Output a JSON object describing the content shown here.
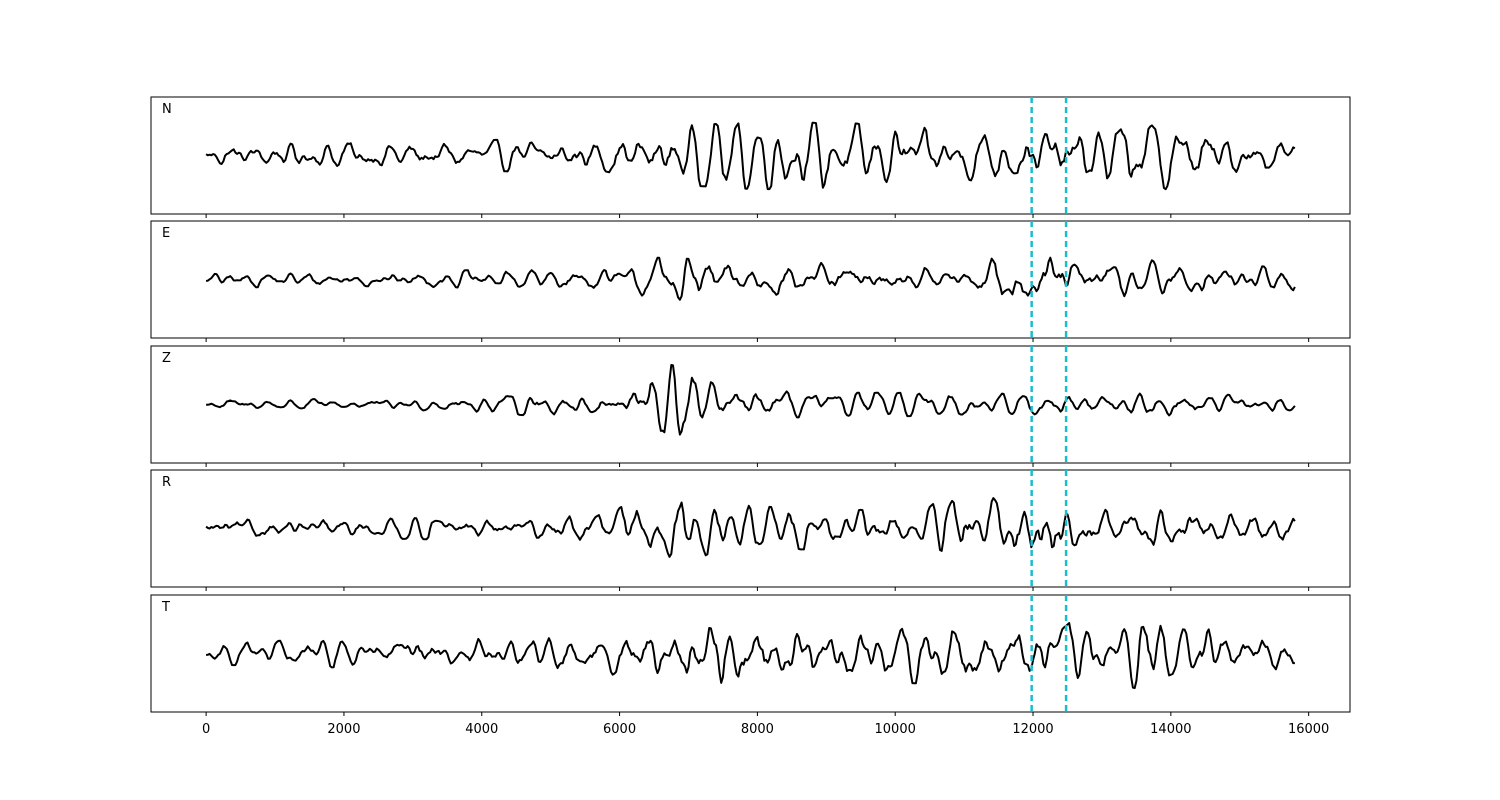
{
  "chart_data": {
    "type": "line",
    "title": "",
    "xlabel": "",
    "ylabel": "",
    "xlim": [
      -800,
      16600
    ],
    "x_ticks": [
      0,
      2000,
      4000,
      6000,
      8000,
      10000,
      12000,
      14000,
      16000
    ],
    "x_tick_labels": [
      "0",
      "2000",
      "4000",
      "6000",
      "8000",
      "10000",
      "12000",
      "14000",
      "16000"
    ],
    "grid": false,
    "y_ticks_visible": false,
    "trace_color": "#000000",
    "marker_color": "#17becf",
    "markers": {
      "style": "dashed",
      "x": [
        11980,
        12480
      ]
    },
    "panels": [
      {
        "label": "N",
        "x_start": 0,
        "x_end": 15800,
        "amplitude_envelope": [
          {
            "x": 0,
            "amp": 0.22
          },
          {
            "x": 2000,
            "amp": 0.28
          },
          {
            "x": 4000,
            "amp": 0.28
          },
          {
            "x": 6000,
            "amp": 0.34
          },
          {
            "x": 7000,
            "amp": 0.55
          },
          {
            "x": 8000,
            "amp": 0.62
          },
          {
            "x": 9700,
            "amp": 0.58
          },
          {
            "x": 11000,
            "amp": 0.45
          },
          {
            "x": 12000,
            "amp": 0.52
          },
          {
            "x": 13800,
            "amp": 0.65
          },
          {
            "x": 15000,
            "amp": 0.35
          },
          {
            "x": 15800,
            "amp": 0.3
          }
        ]
      },
      {
        "label": "E",
        "x_start": 0,
        "x_end": 15800,
        "amplitude_envelope": [
          {
            "x": 0,
            "amp": 0.14
          },
          {
            "x": 3000,
            "amp": 0.15
          },
          {
            "x": 6000,
            "amp": 0.22
          },
          {
            "x": 6700,
            "amp": 0.45
          },
          {
            "x": 7500,
            "amp": 0.4
          },
          {
            "x": 9000,
            "amp": 0.3
          },
          {
            "x": 11000,
            "amp": 0.2
          },
          {
            "x": 12100,
            "amp": 0.7
          },
          {
            "x": 12600,
            "amp": 0.4
          },
          {
            "x": 13800,
            "amp": 0.35
          },
          {
            "x": 15800,
            "amp": 0.22
          }
        ]
      },
      {
        "label": "Z",
        "x_start": 0,
        "x_end": 15800,
        "amplitude_envelope": [
          {
            "x": 0,
            "amp": 0.1
          },
          {
            "x": 3000,
            "amp": 0.1
          },
          {
            "x": 4700,
            "amp": 0.2
          },
          {
            "x": 6000,
            "amp": 0.2
          },
          {
            "x": 6500,
            "amp": 0.8
          },
          {
            "x": 7000,
            "amp": 0.65
          },
          {
            "x": 7500,
            "amp": 0.28
          },
          {
            "x": 9000,
            "amp": 0.22
          },
          {
            "x": 12000,
            "amp": 0.2
          },
          {
            "x": 14000,
            "amp": 0.2
          },
          {
            "x": 15800,
            "amp": 0.15
          }
        ]
      },
      {
        "label": "R",
        "x_start": 0,
        "x_end": 15800,
        "amplitude_envelope": [
          {
            "x": 0,
            "amp": 0.2
          },
          {
            "x": 2000,
            "amp": 0.18
          },
          {
            "x": 5000,
            "amp": 0.22
          },
          {
            "x": 6800,
            "amp": 0.55
          },
          {
            "x": 8000,
            "amp": 0.4
          },
          {
            "x": 10000,
            "amp": 0.35
          },
          {
            "x": 12100,
            "amp": 0.75
          },
          {
            "x": 13000,
            "amp": 0.4
          },
          {
            "x": 14200,
            "amp": 0.4
          },
          {
            "x": 15800,
            "amp": 0.25
          }
        ]
      },
      {
        "label": "T",
        "x_start": 0,
        "x_end": 15800,
        "amplitude_envelope": [
          {
            "x": 0,
            "amp": 0.2
          },
          {
            "x": 2000,
            "amp": 0.26
          },
          {
            "x": 5000,
            "amp": 0.3
          },
          {
            "x": 6500,
            "amp": 0.45
          },
          {
            "x": 7500,
            "amp": 0.7
          },
          {
            "x": 9500,
            "amp": 0.5
          },
          {
            "x": 12100,
            "amp": 0.65
          },
          {
            "x": 13100,
            "amp": 0.5
          },
          {
            "x": 13800,
            "amp": 0.75
          },
          {
            "x": 14700,
            "amp": 0.45
          },
          {
            "x": 15800,
            "amp": 0.3
          }
        ]
      }
    ]
  }
}
